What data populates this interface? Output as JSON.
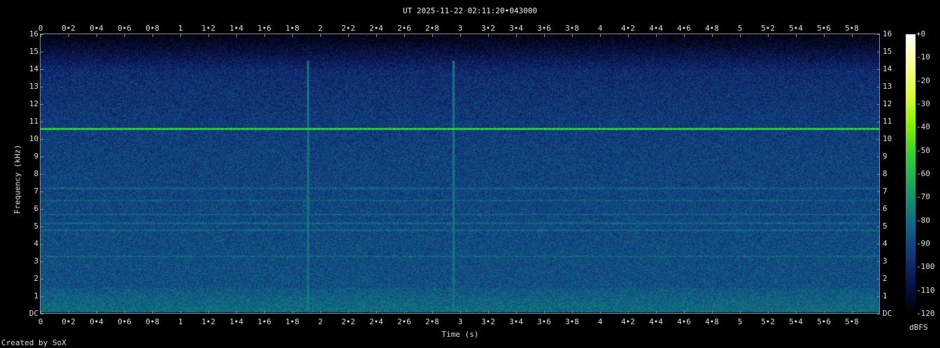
{
  "chart_data": {
    "type": "heatmap",
    "title": "UT 2025-11-22 02:11:20•043000",
    "xlabel": "Time (s)",
    "ylabel": "Frequency (kHz)",
    "xlim": [
      0,
      6
    ],
    "ylim": [
      0,
      16
    ],
    "x_ticks": [
      "0",
      "0•2",
      "0•4",
      "0•6",
      "0•8",
      "1",
      "1•2",
      "1•4",
      "1•6",
      "1•8",
      "2",
      "2•2",
      "2•4",
      "2•6",
      "2•8",
      "3",
      "3•2",
      "3•4",
      "3•6",
      "3•8",
      "4",
      "4•2",
      "4•4",
      "4•6",
      "4•8",
      "5",
      "5•2",
      "5•4",
      "5•6",
      "5•8"
    ],
    "y_ticks": [
      "DC",
      "1",
      "2",
      "3",
      "4",
      "5",
      "6",
      "7",
      "8",
      "9",
      "10",
      "11",
      "12",
      "13",
      "14",
      "15",
      "16"
    ],
    "colorbar": {
      "unit": "dBFS",
      "range": [
        -120,
        0
      ],
      "ticks": [
        "+0",
        "-10",
        "-20",
        "-30",
        "-40",
        "-50",
        "-60",
        "-70",
        "-80",
        "-90",
        "-100",
        "-110",
        "-120"
      ],
      "colors": [
        "#000000",
        "#0a1450",
        "#123c82",
        "#0f6e82",
        "#1aa064",
        "#2ecc3a",
        "#80f000",
        "#d8ff30",
        "#f8ff90",
        "#ffffff"
      ]
    },
    "features": {
      "tone_khz": 10.6,
      "tone_level_dbfs": -55,
      "noise_floor_dbfs": -95,
      "cutoff_khz": 14,
      "transients_s": [
        1.91,
        2.95
      ],
      "horizontal_lines_khz": [
        3.3,
        4.8,
        5.2,
        5.7,
        6.5,
        7.2
      ]
    }
  },
  "footer": {
    "credit": "Created by SoX"
  }
}
